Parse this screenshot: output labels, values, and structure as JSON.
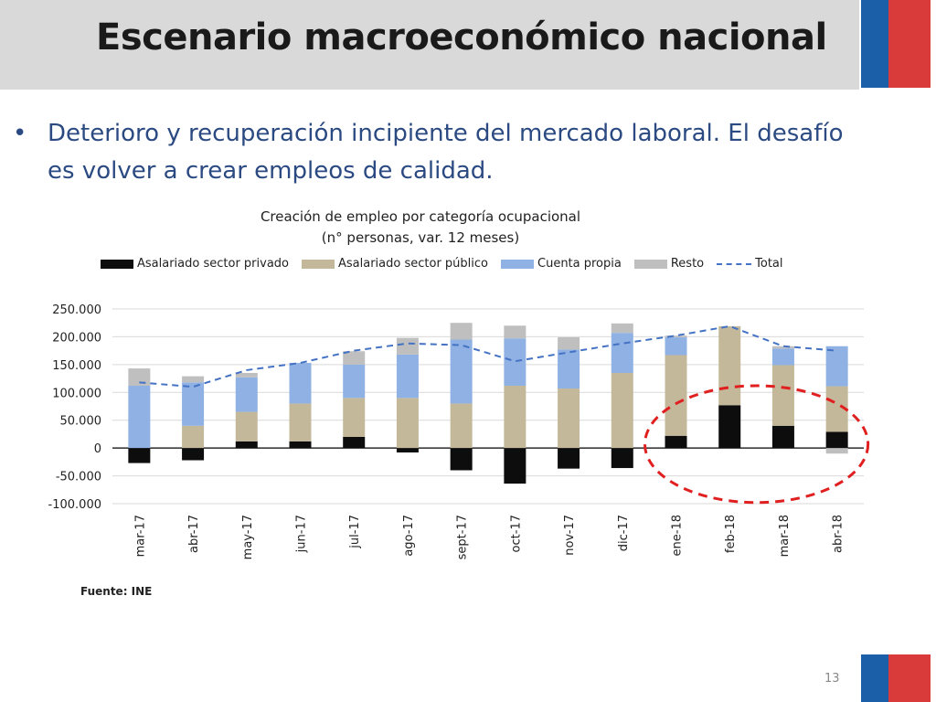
{
  "slide": {
    "title": "Escenario macroeconómico nacional",
    "bullet_text": "Deterioro y recuperación incipiente del mercado laboral. El desafío es volver a crear empleos de calidad.",
    "source": "Fuente: INE",
    "page_number": "13"
  },
  "colors": {
    "title_bar": "#d9d9d9",
    "bullet_text": "#2b4a82",
    "flag_blue": "#1b5fa8",
    "flag_red": "#d93a3a",
    "highlight_circle": "#e02020"
  },
  "chart_data": {
    "type": "bar",
    "stacked": true,
    "title": "Creación de empleo por categoría ocupacional",
    "subtitle": "(n° personas, var. 12 meses)",
    "categories": [
      "mar-17",
      "abr-17",
      "may-17",
      "jun-17",
      "jul-17",
      "ago-17",
      "sept-17",
      "oct-17",
      "nov-17",
      "dic-17",
      "ene-18",
      "feb-18",
      "mar-18",
      "abr-18"
    ],
    "series": [
      {
        "name": "Asalariado sector privado",
        "color": "#0d0d0d",
        "values": [
          -27000,
          -22000,
          12000,
          12000,
          20000,
          -8000,
          -40000,
          -64000,
          -37000,
          -36000,
          22000,
          77000,
          40000,
          29000
        ]
      },
      {
        "name": "Asalariado sector público",
        "color": "#c4b89a",
        "values": [
          0,
          40000,
          53000,
          68000,
          70000,
          90000,
          80000,
          112000,
          107000,
          135000,
          145000,
          142000,
          109000,
          82000
        ]
      },
      {
        "name": "Cuenta propia",
        "color": "#8fb1e3",
        "values": [
          112000,
          78000,
          62000,
          73000,
          60000,
          78000,
          115000,
          85000,
          70000,
          72000,
          32000,
          0,
          30000,
          72000
        ]
      },
      {
        "name": "Resto",
        "color": "#bfbfbf",
        "values": [
          31000,
          11000,
          8000,
          0,
          24000,
          30000,
          30000,
          23000,
          22000,
          17000,
          3000,
          0,
          4000,
          -10000
        ]
      }
    ],
    "line_series": {
      "name": "Total",
      "color": "#4472c4",
      "values": [
        118000,
        110000,
        140000,
        153000,
        175000,
        188000,
        185000,
        156000,
        172000,
        188000,
        202000,
        219000,
        183000,
        175000
      ]
    },
    "ylim": [
      -100000,
      250000
    ],
    "yticks": [
      -100000,
      -50000,
      0,
      50000,
      100000,
      150000,
      200000,
      250000
    ],
    "ytick_labels": [
      "-100.000",
      "-50.000",
      "0",
      "50.000",
      "100.000",
      "150.000",
      "200.000",
      "250.000"
    ],
    "grid": true,
    "legend_position": "top",
    "annotation": "red dashed ellipse around ene-18 to abr-18"
  }
}
